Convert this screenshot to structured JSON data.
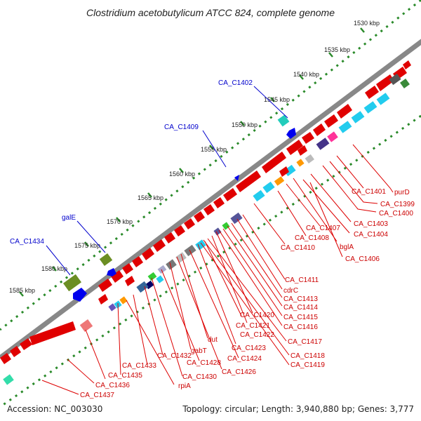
{
  "title": "Clostridium acetobutylicum ATCC 824, complete genome",
  "footer": {
    "accession": "Accession: NC_003030",
    "topology": "Topology: circular; Length: 3,940,880 bp; Genes: 3,777"
  },
  "scale": {
    "ticks": [
      "1530 kbp",
      "1535 kbp",
      "1540 kbp",
      "1545 kbp",
      "1550 kbp",
      "1555 kbp",
      "1560 kbp",
      "1565 kbp",
      "1570 kbp",
      "1575 kbp",
      "1580 kbp",
      "1585 kbp"
    ]
  },
  "colors": {
    "forward_gene": "#ff0000",
    "reverse_gene": "#0000ff",
    "backbone": "#888888",
    "dotted_track": "#2a8a2a",
    "reverse_label": "#0000cc",
    "forward_label": "#cc0000"
  },
  "labels": {
    "reverse": [
      {
        "id": "CA_C1402",
        "text": "CA_C1402"
      },
      {
        "id": "CA_C1409",
        "text": "CA_C1409"
      },
      {
        "id": "galE",
        "text": "galE"
      },
      {
        "id": "CA_C1434",
        "text": "CA_C1434"
      }
    ],
    "forward": [
      {
        "id": "purD",
        "text": "purD"
      },
      {
        "id": "CA_C1401",
        "text": "CA_C1401"
      },
      {
        "id": "CA_C1399",
        "text": "CA_C1399"
      },
      {
        "id": "CA_C1400",
        "text": "CA_C1400"
      },
      {
        "id": "CA_C1403",
        "text": "CA_C1403"
      },
      {
        "id": "CA_C1404",
        "text": "CA_C1404"
      },
      {
        "id": "CA_C1407",
        "text": "CA_C1407"
      },
      {
        "id": "CA_C1408",
        "text": "CA_C1408"
      },
      {
        "id": "bglA",
        "text": "bglA"
      },
      {
        "id": "CA_C1410",
        "text": "CA_C1410"
      },
      {
        "id": "CA_C1406",
        "text": "CA_C1406"
      },
      {
        "id": "CA_C1411",
        "text": "CA_C1411"
      },
      {
        "id": "cdrC",
        "text": "cdrC"
      },
      {
        "id": "CA_C1413",
        "text": "CA_C1413"
      },
      {
        "id": "CA_C1414",
        "text": "CA_C1414"
      },
      {
        "id": "CA_C1420",
        "text": "CA_C1420"
      },
      {
        "id": "CA_C1415",
        "text": "CA_C1415"
      },
      {
        "id": "CA_C1421",
        "text": "CA_C1421"
      },
      {
        "id": "CA_C1416",
        "text": "CA_C1416"
      },
      {
        "id": "CA_C1422",
        "text": "CA_C1422"
      },
      {
        "id": "dut",
        "text": "dut"
      },
      {
        "id": "CA_C1417",
        "text": "CA_C1417"
      },
      {
        "id": "CA_C1423",
        "text": "CA_C1423"
      },
      {
        "id": "gabT",
        "text": "gabT"
      },
      {
        "id": "CA_C1418",
        "text": "CA_C1418"
      },
      {
        "id": "CA_C1432",
        "text": "CA_C1432"
      },
      {
        "id": "CA_C1424",
        "text": "CA_C1424"
      },
      {
        "id": "CA_C1419",
        "text": "CA_C1419"
      },
      {
        "id": "CA_C1433",
        "text": "CA_C1433"
      },
      {
        "id": "CA_C1428",
        "text": "CA_C1428"
      },
      {
        "id": "CA_C1426",
        "text": "CA_C1426"
      },
      {
        "id": "CA_C1435",
        "text": "CA_C1435"
      },
      {
        "id": "CA_C1430",
        "text": "CA_C1430"
      },
      {
        "id": "CA_C1436",
        "text": "CA_C1436"
      },
      {
        "id": "rpiA",
        "text": "rpiA"
      },
      {
        "id": "CA_C1437",
        "text": "CA_C1437"
      }
    ]
  }
}
